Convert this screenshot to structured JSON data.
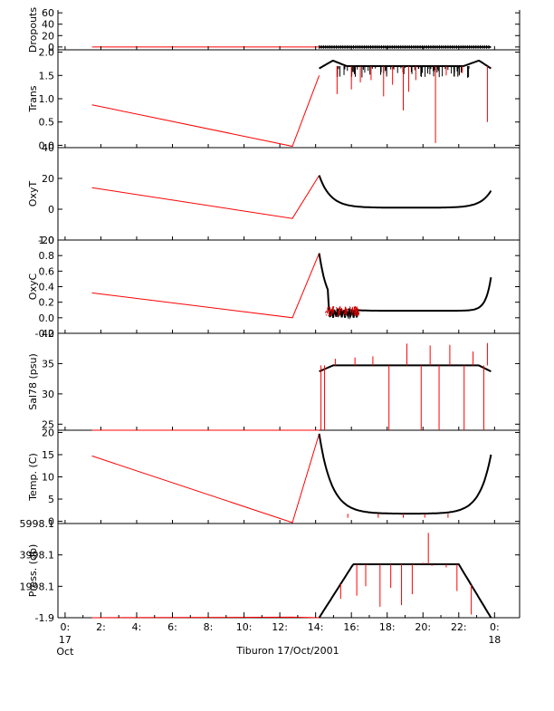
{
  "chart_data": [
    {
      "type": "line",
      "ylabel": "Dropouts",
      "ylim": [
        -5,
        65
      ],
      "yticks": [
        {
          "v": 60,
          "t": "60"
        },
        {
          "v": 40,
          "t": "40"
        },
        {
          "v": 20,
          "t": "20"
        },
        {
          "v": 0,
          "t": "0"
        }
      ],
      "series": [
        {
          "color": "#ff0000",
          "points": [
            [
              1.5,
              0
            ],
            [
              12.7,
              0
            ],
            [
              14.2,
              0
            ]
          ]
        }
      ],
      "black": {
        "kind": "flat",
        "x0": 14.2,
        "x1": 23.8,
        "y": 0
      }
    },
    {
      "type": "line",
      "ylabel": "Trans",
      "ylim": [
        -0.05,
        2.05
      ],
      "yticks": [
        {
          "v": 2.0,
          "t": "2.0"
        },
        {
          "v": 1.5,
          "t": "1.5"
        },
        {
          "v": 1.0,
          "t": "1.0"
        },
        {
          "v": 0.5,
          "t": "0.5"
        },
        {
          "v": 0.0,
          "t": "0.0"
        }
      ],
      "series": [
        {
          "color": "#ff0000",
          "points": [
            [
              1.5,
              0.87
            ],
            [
              12.7,
              -0.02
            ],
            [
              14.2,
              1.5
            ]
          ]
        }
      ],
      "black": {
        "kind": "profile",
        "x0": 14.2,
        "x1": 23.8,
        "ends": 1.65,
        "peak": 1.82,
        "mid": 1.7,
        "spikes": [
          [
            15.2,
            1.1
          ],
          [
            16.0,
            1.2
          ],
          [
            16.5,
            1.35
          ],
          [
            17.1,
            1.4
          ],
          [
            17.8,
            1.05
          ],
          [
            18.3,
            1.3
          ],
          [
            18.9,
            0.75
          ],
          [
            19.2,
            1.15
          ],
          [
            19.6,
            1.4
          ],
          [
            20.7,
            0.05
          ],
          [
            21.3,
            1.5
          ],
          [
            22.2,
            1.55
          ],
          [
            23.6,
            0.5
          ]
        ]
      }
    },
    {
      "type": "line",
      "ylabel": "OxyT",
      "ylim": [
        -20,
        40
      ],
      "yticks": [
        {
          "v": 40,
          "t": "40"
        },
        {
          "v": 20,
          "t": "20"
        },
        {
          "v": 0,
          "t": "0"
        },
        {
          "v": -20,
          "t": "-20"
        }
      ],
      "series": [
        {
          "color": "#ff0000",
          "points": [
            [
              1.5,
              14
            ],
            [
              12.7,
              -6
            ],
            [
              14.2,
              22
            ]
          ]
        }
      ],
      "black": {
        "kind": "bowl",
        "x0": 14.2,
        "x1": 23.8,
        "start": 22,
        "floor": 1,
        "end": 12,
        "kin": 0.55,
        "kout": 0.5
      }
    },
    {
      "type": "line",
      "ylabel": "OxyC",
      "ylim": [
        -0.2,
        1.0
      ],
      "yticks": [
        {
          "v": 1.0,
          "t": "1.0"
        },
        {
          "v": 0.8,
          "t": "0.8"
        },
        {
          "v": 0.6,
          "t": "0.6"
        },
        {
          "v": 0.4,
          "t": "0.4"
        },
        {
          "v": 0.2,
          "t": "0.2"
        },
        {
          "v": 0.0,
          "t": "0.0"
        },
        {
          "v": -0.2,
          "t": "-0.2"
        }
      ],
      "series": [
        {
          "color": "#ff0000",
          "points": [
            [
              1.5,
              0.32
            ],
            [
              12.7,
              0.0
            ],
            [
              14.2,
              0.83
            ]
          ]
        }
      ],
      "black": {
        "kind": "oxyc",
        "x0": 14.2,
        "x1": 23.8,
        "start": 0.83,
        "floor": 0.09,
        "end": 0.52
      }
    },
    {
      "type": "line",
      "ylabel": "Sal78 (psu)",
      "ylim": [
        24,
        40
      ],
      "yticks": [
        {
          "v": 40,
          "t": "40"
        },
        {
          "v": 35,
          "t": "35"
        },
        {
          "v": 30,
          "t": "30"
        },
        {
          "v": 25,
          "t": "25"
        }
      ],
      "series": [
        {
          "color": "#ff0000",
          "points": [
            [
              1.5,
              24
            ],
            [
              12.7,
              24
            ],
            [
              14.2,
              24
            ]
          ]
        }
      ],
      "black": {
        "kind": "profile",
        "x0": 14.2,
        "x1": 23.8,
        "ends": 33.7,
        "peak": 34.7,
        "mid": 34.7,
        "spikes": [
          [
            14.3,
            24
          ],
          [
            14.5,
            24
          ],
          [
            15.1,
            35.8
          ],
          [
            16.2,
            36
          ],
          [
            17.2,
            36.2
          ],
          [
            18.1,
            24
          ],
          [
            19.1,
            38.3
          ],
          [
            19.9,
            24
          ],
          [
            20.4,
            38.0
          ],
          [
            20.9,
            24
          ],
          [
            21.5,
            38.1
          ],
          [
            22.3,
            24
          ],
          [
            22.8,
            37
          ],
          [
            23.4,
            24
          ],
          [
            23.6,
            38.4
          ]
        ]
      }
    },
    {
      "type": "line",
      "ylabel": "Temp. (C)",
      "ylim": [
        -0.5,
        20.5
      ],
      "yticks": [
        {
          "v": 20,
          "t": "20"
        },
        {
          "v": 15,
          "t": "15"
        },
        {
          "v": 10,
          "t": "10"
        },
        {
          "v": 5,
          "t": "5"
        },
        {
          "v": 0,
          "t": "0"
        }
      ],
      "series": [
        {
          "color": "#ff0000",
          "points": [
            [
              1.5,
              14.7
            ],
            [
              12.7,
              -0.3
            ],
            [
              14.2,
              19.7
            ]
          ]
        }
      ],
      "black": {
        "kind": "bowl",
        "x0": 14.2,
        "x1": 23.8,
        "start": 19.7,
        "floor": 1.7,
        "end": 15.0,
        "kin": 0.6,
        "kout": 0.55,
        "drops": [
          [
            15.8,
            0.8
          ],
          [
            17.5,
            0.8
          ],
          [
            18.9,
            0.8
          ],
          [
            20.1,
            0.8
          ],
          [
            21.4,
            0.8
          ]
        ]
      }
    },
    {
      "type": "line",
      "ylabel": "Press. (db)",
      "ylim": [
        -1.9,
        5998.1
      ],
      "yticks": [
        {
          "v": 5998.1,
          "t": "5998.1"
        },
        {
          "v": 3998.1,
          "t": "3998.1"
        },
        {
          "v": 1998.1,
          "t": "1998.1"
        },
        {
          "v": -1.9,
          "t": "-1.9"
        }
      ],
      "series": [
        {
          "color": "#ff0000",
          "points": [
            [
              1.5,
              -1.9
            ],
            [
              12.7,
              30
            ],
            [
              14.2,
              -1.9
            ]
          ]
        }
      ],
      "black": {
        "kind": "trapezoid",
        "x0": 14.2,
        "x1": 23.8,
        "top": 3400,
        "rampUpEnd": 16.1,
        "rampDownStart": 22.0,
        "spikes": [
          [
            15.4,
            1200
          ],
          [
            16.3,
            1400
          ],
          [
            16.8,
            2000
          ],
          [
            17.6,
            700
          ],
          [
            18.2,
            1900
          ],
          [
            18.8,
            800
          ],
          [
            19.4,
            1500
          ],
          [
            20.0,
            3500
          ],
          [
            20.3,
            5400
          ],
          [
            20.5,
            3300
          ],
          [
            21.3,
            3200
          ],
          [
            21.9,
            1700
          ],
          [
            22.7,
            200
          ]
        ]
      }
    }
  ],
  "xaxis": {
    "xlim": [
      -0.4,
      25.4
    ],
    "ticks": [
      {
        "v": 0,
        "t": "0:"
      },
      {
        "v": 2,
        "t": "2:"
      },
      {
        "v": 4,
        "t": "4:"
      },
      {
        "v": 6,
        "t": "6:"
      },
      {
        "v": 8,
        "t": "8:"
      },
      {
        "v": 10,
        "t": "10:"
      },
      {
        "v": 12,
        "t": "12:"
      },
      {
        "v": 14,
        "t": "14:"
      },
      {
        "v": 16,
        "t": "16:"
      },
      {
        "v": 18,
        "t": "18:"
      },
      {
        "v": 20,
        "t": "20:"
      },
      {
        "v": 22,
        "t": "22:"
      },
      {
        "v": 24,
        "t": "0:"
      }
    ],
    "day_labels": [
      {
        "v": 0,
        "lines": [
          "17",
          "Oct"
        ]
      },
      {
        "v": 24,
        "lines": [
          "18"
        ]
      }
    ],
    "title": "Tiburon 17/Oct/2001"
  }
}
